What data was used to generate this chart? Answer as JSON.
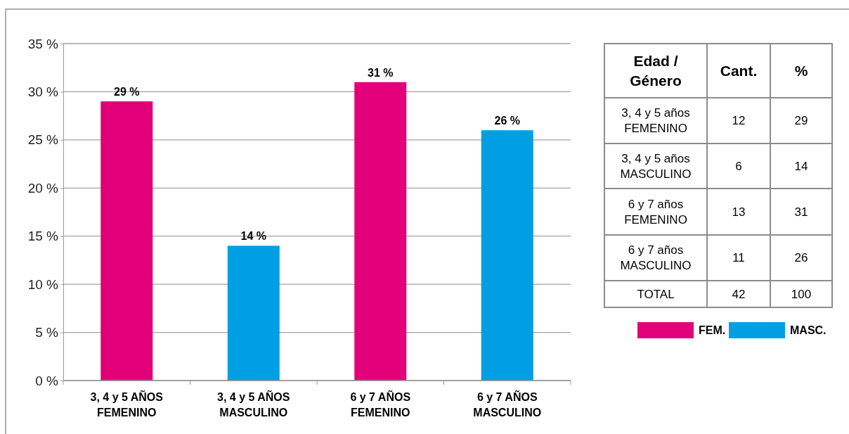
{
  "chart_data": [
    {
      "type": "bar",
      "categories": [
        "3, 4 y 5 AÑOS\nFEMENINO",
        "3, 4 y 5 AÑOS\nMASCULINO",
        "6 y 7 AÑOS\nFEMENINO",
        "6 y 7 AÑOS\nMASCULINO"
      ],
      "series": [
        {
          "name": "FEM.",
          "color": "#e2007a",
          "values": [
            29,
            null,
            31,
            null
          ],
          "value_labels": [
            "29 %",
            null,
            "31 %",
            null
          ]
        },
        {
          "name": "MASC.",
          "color": "#009fe3",
          "values": [
            null,
            14,
            null,
            26
          ],
          "value_labels": [
            null,
            "14 %",
            null,
            "26 %"
          ]
        }
      ],
      "ylim": [
        0,
        35
      ],
      "yticks": [
        {
          "value": 0,
          "label": "0 %"
        },
        {
          "value": 5,
          "label": "5 %"
        },
        {
          "value": 10,
          "label": "10 %"
        },
        {
          "value": 15,
          "label": "15 %"
        },
        {
          "value": 20,
          "label": "20 %"
        },
        {
          "value": 25,
          "label": "25 %"
        },
        {
          "value": 30,
          "label": "30 %"
        },
        {
          "value": 35,
          "label": "35 %"
        }
      ],
      "grid": "y",
      "legend": "right"
    },
    {
      "type": "other",
      "xlabel": "Edad /\nGénero",
      "categories": [
        "3, 4 y 5 años\nFEMENINO",
        "3, 4 y 5 años\nMASCULINO",
        "6 y 7 años\nFEMENINO",
        "6 y 7 años\nMASCULINO",
        "TOTAL"
      ],
      "series": [
        {
          "name": "Cant.",
          "values": [
            12,
            6,
            13,
            11,
            42
          ]
        },
        {
          "name": "%",
          "values": [
            29,
            14,
            31,
            26,
            100
          ]
        }
      ],
      "data_labels": true
    }
  ]
}
